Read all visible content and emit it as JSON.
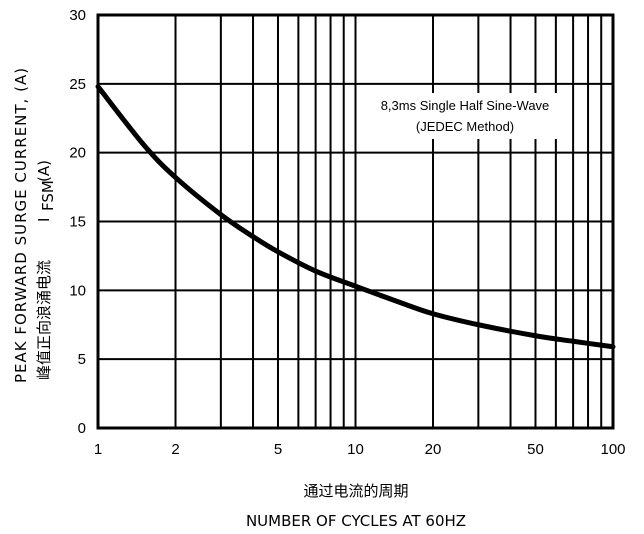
{
  "chart_data": {
    "type": "line",
    "xscale": "log",
    "xlim": [
      1,
      100
    ],
    "ylim": [
      0,
      30
    ],
    "grid": true,
    "x_ticks": [
      1,
      2,
      5,
      10,
      20,
      50,
      100
    ],
    "x_tick_labels": [
      "1",
      "2",
      "5",
      "10",
      "20",
      "50",
      "100"
    ],
    "y_ticks": [
      0,
      5,
      10,
      15,
      20,
      25,
      30
    ],
    "y_tick_labels": [
      "0",
      "5",
      "10",
      "15",
      "20",
      "25",
      "30"
    ],
    "xlabel_cn": "通过电流的周期",
    "xlabel": "NUMBER OF CYCLES AT 60HZ",
    "ylabel": "PEAK FORWARD SURGE CURRENT, (A)",
    "ylabel_cn": "峰值正向浪涌电流",
    "ylabel_symbol": "I",
    "ylabel_subscript": "FSM",
    "ylabel_unit": "(A)",
    "annotation_line1": "8,3ms Single Half Sine-Wave",
    "annotation_line2": "(JEDEC Method)",
    "series": [
      {
        "x": [
          1,
          1.5,
          2,
          3,
          4,
          5,
          7,
          10,
          15,
          20,
          30,
          50,
          70,
          100
        ],
        "y": [
          24.8,
          20.6,
          18.2,
          15.5,
          13.9,
          12.8,
          11.4,
          10.3,
          9.1,
          8.3,
          7.5,
          6.7,
          6.3,
          5.9
        ]
      }
    ]
  }
}
